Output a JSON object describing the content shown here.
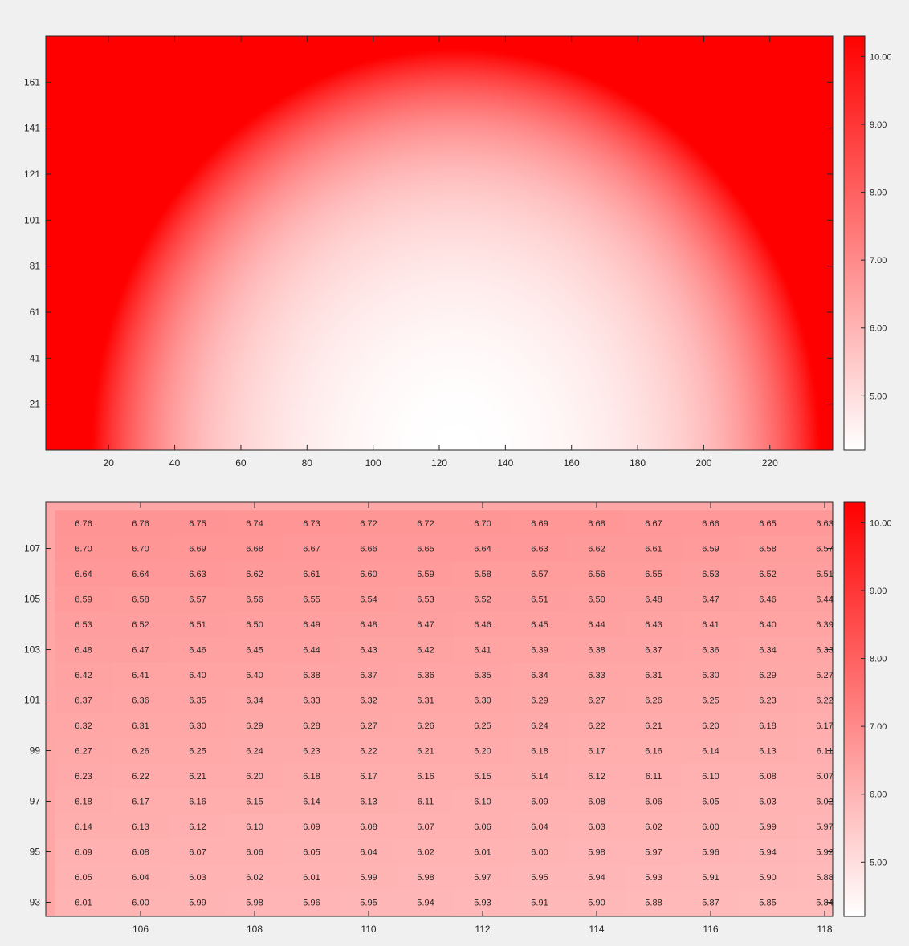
{
  "colors": {
    "low": "#ffffff",
    "high": "#ff0000",
    "background": "#f0f0f0",
    "axis": "#262626"
  },
  "chart_data": [
    {
      "type": "heatmap",
      "title": "",
      "xlabel": "",
      "ylabel": "",
      "xlim": [
        1,
        239
      ],
      "ylim": [
        1,
        181
      ],
      "clim": [
        4.2,
        10.3
      ],
      "colormap": "white-to-red",
      "xticks": [
        20,
        40,
        60,
        80,
        100,
        120,
        140,
        160,
        180,
        200,
        220
      ],
      "yticks": [
        21,
        41,
        61,
        81,
        101,
        121,
        141,
        161
      ],
      "colorbar_ticks": [
        "5.00",
        "6.00",
        "7.00",
        "8.00",
        "9.00",
        "10.00"
      ],
      "colorbar_values": [
        5,
        6,
        7,
        8,
        9,
        10
      ],
      "pattern": "minimum 4.2 near (125, 1); value rises toward the left, right and top edges; saturated above 10 along the top (y > 145) and in the top corners"
    },
    {
      "type": "heatmap",
      "title": "",
      "xlabel": "",
      "ylabel": "",
      "clim": [
        4.2,
        10.3
      ],
      "colormap": "white-to-red",
      "x": [
        105,
        106,
        107,
        108,
        109,
        110,
        111,
        112,
        113,
        114,
        115,
        116,
        117,
        118
      ],
      "y": [
        108,
        107,
        106,
        105,
        104,
        103,
        102,
        101,
        100,
        99,
        98,
        97,
        96,
        95,
        94,
        93
      ],
      "xticks": [
        106,
        108,
        110,
        112,
        114,
        116,
        118
      ],
      "yticks": [
        93,
        95,
        97,
        99,
        101,
        103,
        105,
        107
      ],
      "colorbar_ticks": [
        "5.00",
        "6.00",
        "7.00",
        "8.00",
        "9.00",
        "10.00"
      ],
      "colorbar_values": [
        5,
        6,
        7,
        8,
        9,
        10
      ],
      "values": [
        [
          "6.76",
          "6.76",
          "6.75",
          "6.74",
          "6.73",
          "6.72",
          "6.72",
          "6.70",
          "6.69",
          "6.68",
          "6.67",
          "6.66",
          "6.65",
          "6.63"
        ],
        [
          "6.70",
          "6.70",
          "6.69",
          "6.68",
          "6.67",
          "6.66",
          "6.65",
          "6.64",
          "6.63",
          "6.62",
          "6.61",
          "6.59",
          "6.58",
          "6.57"
        ],
        [
          "6.64",
          "6.64",
          "6.63",
          "6.62",
          "6.61",
          "6.60",
          "6.59",
          "6.58",
          "6.57",
          "6.56",
          "6.55",
          "6.53",
          "6.52",
          "6.51"
        ],
        [
          "6.59",
          "6.58",
          "6.57",
          "6.56",
          "6.55",
          "6.54",
          "6.53",
          "6.52",
          "6.51",
          "6.50",
          "6.48",
          "6.47",
          "6.46",
          "6.44"
        ],
        [
          "6.53",
          "6.52",
          "6.51",
          "6.50",
          "6.49",
          "6.48",
          "6.47",
          "6.46",
          "6.45",
          "6.44",
          "6.43",
          "6.41",
          "6.40",
          "6.39"
        ],
        [
          "6.48",
          "6.47",
          "6.46",
          "6.45",
          "6.44",
          "6.43",
          "6.42",
          "6.41",
          "6.39",
          "6.38",
          "6.37",
          "6.36",
          "6.34",
          "6.33"
        ],
        [
          "6.42",
          "6.41",
          "6.40",
          "6.40",
          "6.38",
          "6.37",
          "6.36",
          "6.35",
          "6.34",
          "6.33",
          "6.31",
          "6.30",
          "6.29",
          "6.27"
        ],
        [
          "6.37",
          "6.36",
          "6.35",
          "6.34",
          "6.33",
          "6.32",
          "6.31",
          "6.30",
          "6.29",
          "6.27",
          "6.26",
          "6.25",
          "6.23",
          "6.22"
        ],
        [
          "6.32",
          "6.31",
          "6.30",
          "6.29",
          "6.28",
          "6.27",
          "6.26",
          "6.25",
          "6.24",
          "6.22",
          "6.21",
          "6.20",
          "6.18",
          "6.17"
        ],
        [
          "6.27",
          "6.26",
          "6.25",
          "6.24",
          "6.23",
          "6.22",
          "6.21",
          "6.20",
          "6.18",
          "6.17",
          "6.16",
          "6.14",
          "6.13",
          "6.11"
        ],
        [
          "6.23",
          "6.22",
          "6.21",
          "6.20",
          "6.18",
          "6.17",
          "6.16",
          "6.15",
          "6.14",
          "6.12",
          "6.11",
          "6.10",
          "6.08",
          "6.07"
        ],
        [
          "6.18",
          "6.17",
          "6.16",
          "6.15",
          "6.14",
          "6.13",
          "6.11",
          "6.10",
          "6.09",
          "6.08",
          "6.06",
          "6.05",
          "6.03",
          "6.02"
        ],
        [
          "6.14",
          "6.13",
          "6.12",
          "6.10",
          "6.09",
          "6.08",
          "6.07",
          "6.06",
          "6.04",
          "6.03",
          "6.02",
          "6.00",
          "5.99",
          "5.97"
        ],
        [
          "6.09",
          "6.08",
          "6.07",
          "6.06",
          "6.05",
          "6.04",
          "6.02",
          "6.01",
          "6.00",
          "5.98",
          "5.97",
          "5.96",
          "5.94",
          "5.92"
        ],
        [
          "6.05",
          "6.04",
          "6.03",
          "6.02",
          "6.01",
          "5.99",
          "5.98",
          "5.97",
          "5.95",
          "5.94",
          "5.93",
          "5.91",
          "5.90",
          "5.88"
        ],
        [
          "6.01",
          "6.00",
          "5.99",
          "5.98",
          "5.96",
          "5.95",
          "5.94",
          "5.93",
          "5.91",
          "5.90",
          "5.88",
          "5.87",
          "5.85",
          "5.84"
        ]
      ]
    }
  ]
}
